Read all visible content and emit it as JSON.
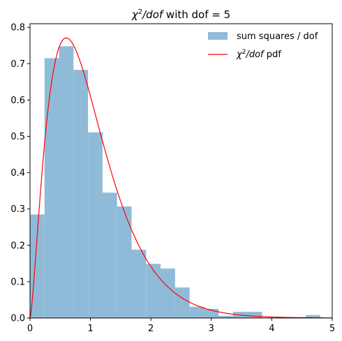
{
  "chart_data": {
    "type": "bar",
    "title": {
      "prefix": "χ",
      "sup": "2",
      "slash": "/",
      "italic": "dof",
      "suffix": " with dof = 5"
    },
    "xlabel": "",
    "ylabel": "",
    "xlim": [
      0,
      5
    ],
    "ylim": [
      0,
      0.81
    ],
    "xticks": [
      0,
      1,
      2,
      3,
      4,
      5
    ],
    "xtick_labels": [
      "0",
      "1",
      "2",
      "3",
      "4",
      "5"
    ],
    "yticks": [
      0.0,
      0.1,
      0.2,
      0.3,
      0.4,
      0.5,
      0.6,
      0.7,
      0.8
    ],
    "ytick_labels": [
      "0.0",
      "0.1",
      "0.2",
      "0.3",
      "0.4",
      "0.5",
      "0.6",
      "0.7",
      "0.8"
    ],
    "grid": false,
    "legend_position": "top-right",
    "histogram": {
      "name": "sum squares / dof",
      "color": "#8fbbd9",
      "bin_edges": [
        0.0,
        0.24,
        0.48,
        0.72,
        0.96,
        1.2,
        1.44,
        1.68,
        1.92,
        2.16,
        2.4,
        2.64,
        2.88,
        3.12,
        3.36,
        3.6,
        3.84,
        4.08,
        4.32,
        4.56,
        4.8
      ],
      "values": [
        0.285,
        0.715,
        0.748,
        0.683,
        0.511,
        0.345,
        0.307,
        0.188,
        0.149,
        0.136,
        0.084,
        0.031,
        0.025,
        0.006,
        0.017,
        0.017,
        0.0,
        0.0,
        0.0,
        0.008
      ]
    },
    "curve": {
      "name_prefix": "χ",
      "name_sup": "2",
      "name_slash": "/",
      "name_italic": "dof",
      "name_suffix": " pdf",
      "color": "#ff0000",
      "dof": 5
    }
  }
}
